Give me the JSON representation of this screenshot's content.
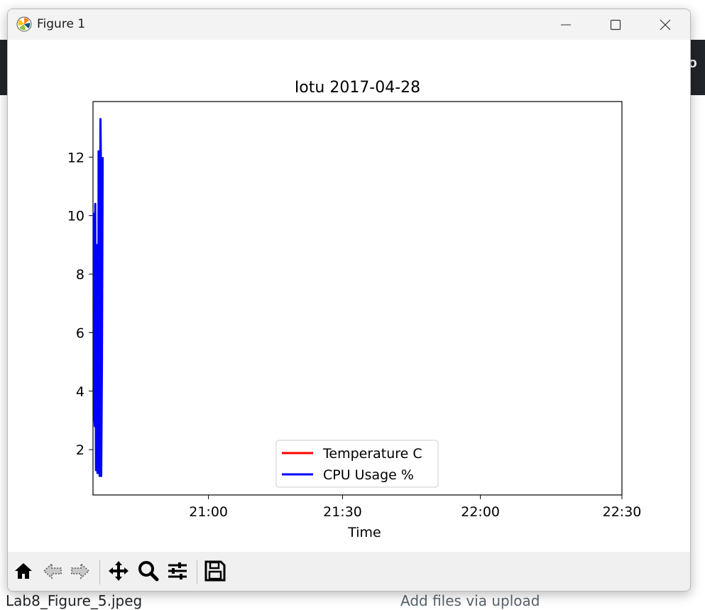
{
  "window": {
    "title": "Figure 1"
  },
  "background": {
    "bottom_file": "Lab8_Figure_5.jpeg",
    "bottom_msg": "Add files via upload",
    "right_fragment": "lo"
  },
  "colors": {
    "temperature": "#ff0000",
    "cpu": "#0000ff"
  },
  "toolbar": {
    "buttons": [
      "home-icon",
      "back-icon",
      "forward-icon",
      "pan-icon",
      "zoom-icon",
      "configure-icon",
      "save-icon"
    ]
  },
  "chart_data": {
    "type": "line",
    "title": "Iotu 2017-04-28",
    "xlabel": "Time",
    "ylabel": "",
    "x_ticks": [
      "21:00",
      "21:30",
      "22:00",
      "22:30"
    ],
    "y_ticks": [
      "2",
      "4",
      "6",
      "8",
      "10",
      "12"
    ],
    "ylim": [
      0.45,
      13.9
    ],
    "xlim_minutes": [
      0,
      142
    ],
    "x_tick_minutes": [
      31,
      67,
      104,
      142
    ],
    "legend": [
      "Temperature C",
      "CPU Usage %"
    ],
    "legend_position": "bottom-center",
    "series": [
      {
        "name": "Temperature C",
        "x_minutes": [
          0.6,
          0.9,
          1.2,
          1.5,
          1.8,
          2.1
        ],
        "values": [
          5.1,
          5.0,
          5.2,
          5.1,
          5.0,
          5.1
        ]
      },
      {
        "name": "CPU Usage %",
        "x_minutes": [
          0.2,
          0.4,
          0.5,
          0.6,
          0.8,
          0.9,
          1.0,
          1.2,
          1.4,
          1.5,
          1.6,
          1.8,
          2.0,
          2.1,
          2.2,
          2.4,
          2.6
        ],
        "values": [
          10.1,
          3.0,
          2.8,
          10.4,
          1.3,
          9.0,
          2.9,
          1.2,
          2.2,
          12.2,
          1.4,
          1.1,
          13.3,
          12.1,
          1.1,
          5.0,
          12.0
        ]
      }
    ]
  }
}
